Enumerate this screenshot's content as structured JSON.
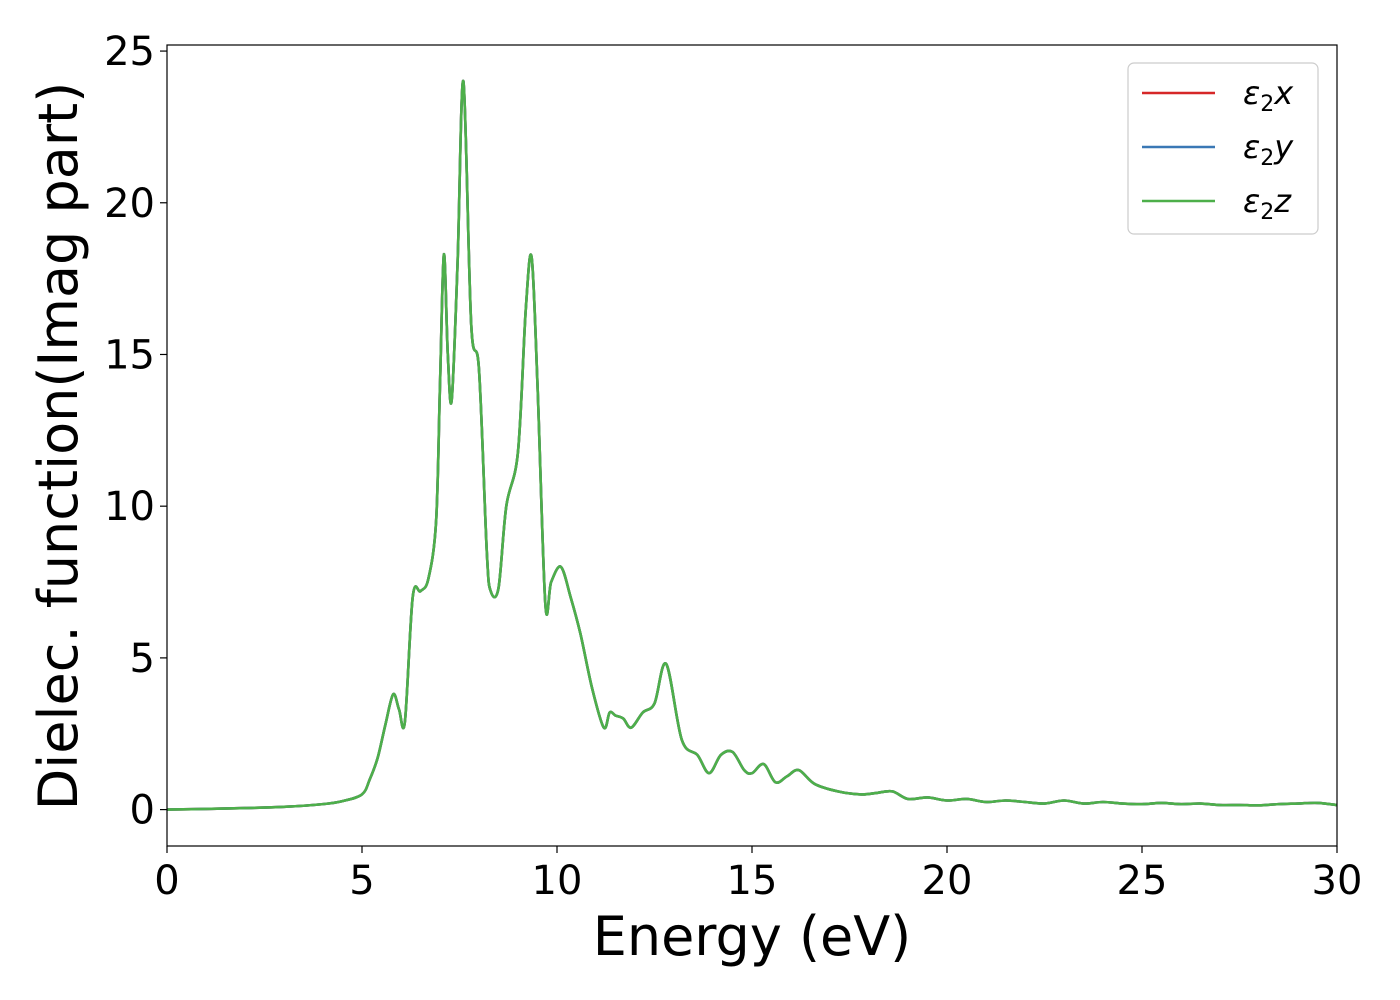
{
  "chart_data": {
    "type": "line",
    "title": "",
    "xlabel": "Energy (eV)",
    "ylabel": "Dielec. function(Imag part)",
    "xlim": [
      0,
      30
    ],
    "ylim": [
      -1.2,
      25.2
    ],
    "xticks": [
      0,
      5,
      10,
      15,
      20,
      25,
      30
    ],
    "yticks": [
      0,
      5,
      10,
      15,
      20,
      25
    ],
    "grid": false,
    "legend_position": "top-right",
    "series": [
      {
        "name": "ε2x",
        "symbol": "ε",
        "sub": "2",
        "axis": "x",
        "color": "#d62728"
      },
      {
        "name": "ε2y",
        "symbol": "ε",
        "sub": "2",
        "axis": "y",
        "color": "#3a78b5"
      },
      {
        "name": "ε2z",
        "symbol": "ε",
        "sub": "2",
        "axis": "z",
        "color": "#4daf4a"
      }
    ],
    "x": [
      0,
      1,
      2,
      3,
      4,
      4.5,
      5.0,
      5.2,
      5.4,
      5.6,
      5.8,
      5.95,
      6.1,
      6.3,
      6.5,
      6.7,
      6.9,
      7.0,
      7.1,
      7.2,
      7.3,
      7.45,
      7.6,
      7.8,
      8.0,
      8.2,
      8.3,
      8.5,
      8.7,
      9.0,
      9.2,
      9.35,
      9.5,
      9.7,
      9.85,
      10.1,
      10.35,
      10.6,
      10.9,
      11.2,
      11.35,
      11.5,
      11.7,
      11.9,
      12.2,
      12.5,
      12.8,
      13.2,
      13.6,
      13.9,
      14.2,
      14.5,
      14.8,
      15.0,
      15.3,
      15.6,
      15.9,
      16.2,
      16.6,
      17.2,
      17.8,
      18.2,
      18.6,
      19.0,
      19.5,
      20.0,
      20.5,
      21.0,
      21.5,
      22.0,
      22.5,
      23.0,
      23.5,
      24.0,
      24.5,
      25.0,
      25.5,
      26.0,
      26.5,
      27.0,
      27.5,
      28.0,
      28.5,
      29.0,
      29.5,
      30.0
    ],
    "y": [
      0.0,
      0.02,
      0.05,
      0.09,
      0.18,
      0.28,
      0.5,
      1.0,
      1.7,
      2.8,
      3.8,
      3.3,
      2.9,
      7.0,
      7.2,
      7.6,
      9.5,
      14.0,
      18.3,
      15.0,
      13.5,
      18.0,
      24.0,
      16.0,
      14.5,
      8.5,
      7.2,
      7.3,
      10.0,
      11.8,
      16.5,
      18.2,
      14.0,
      6.8,
      7.5,
      8.0,
      7.0,
      5.8,
      4.0,
      2.7,
      3.2,
      3.1,
      3.0,
      2.7,
      3.2,
      3.5,
      4.8,
      2.3,
      1.8,
      1.2,
      1.8,
      1.9,
      1.3,
      1.2,
      1.5,
      0.9,
      1.1,
      1.3,
      0.85,
      0.6,
      0.5,
      0.55,
      0.6,
      0.35,
      0.4,
      0.3,
      0.35,
      0.25,
      0.3,
      0.25,
      0.2,
      0.3,
      0.2,
      0.25,
      0.2,
      0.18,
      0.22,
      0.18,
      0.2,
      0.15,
      0.15,
      0.14,
      0.18,
      0.2,
      0.22,
      0.15
    ]
  }
}
